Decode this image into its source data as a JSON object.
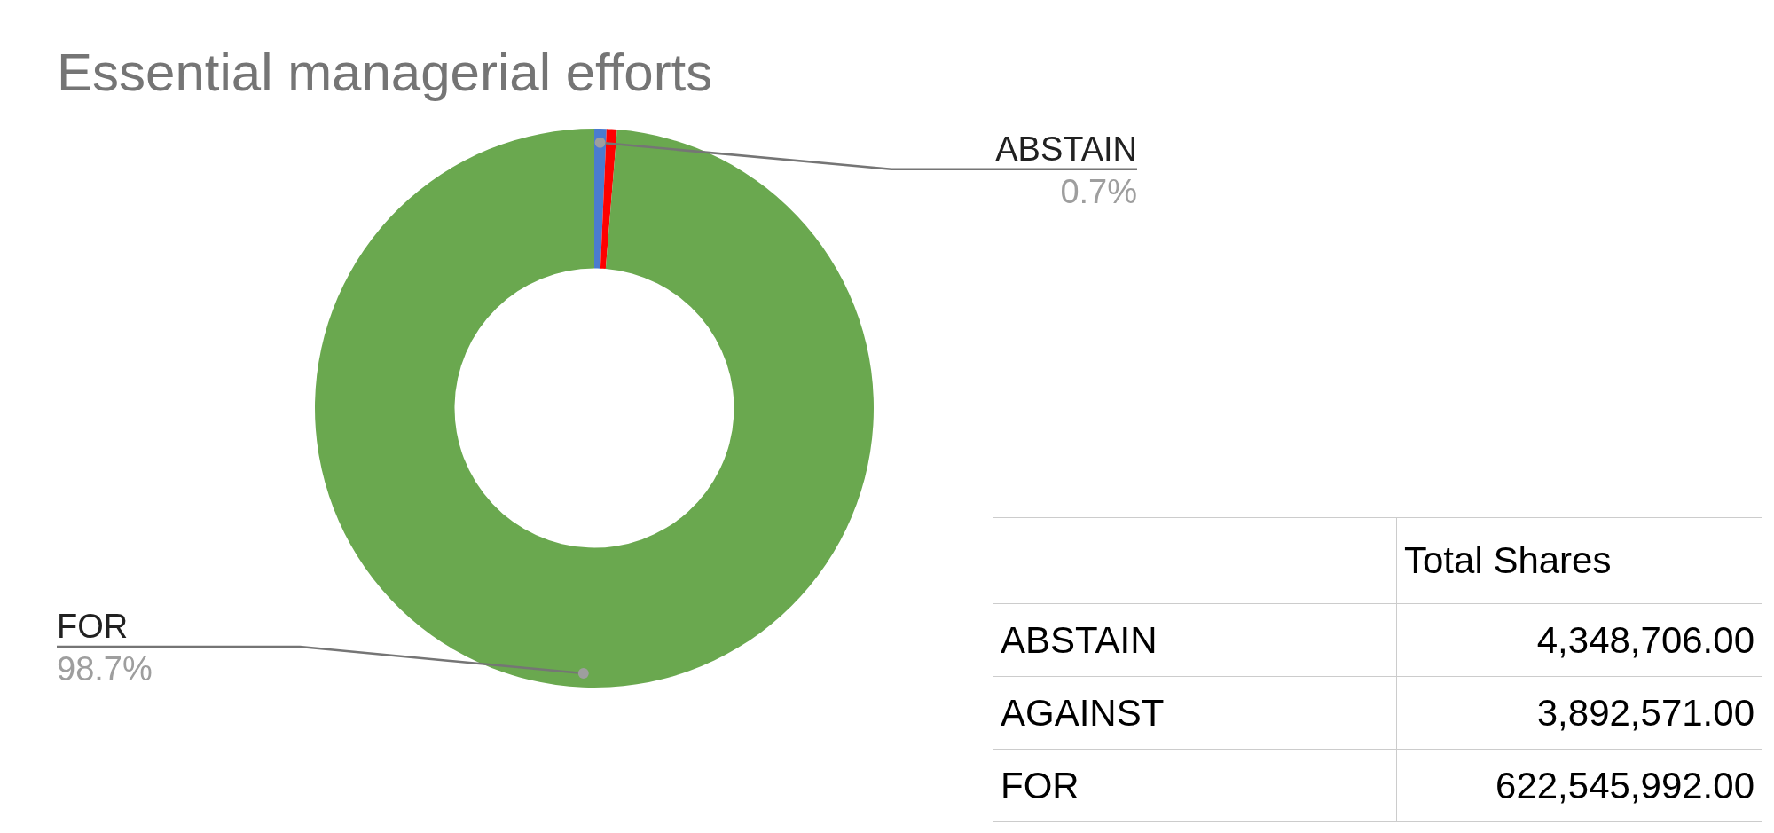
{
  "chart_data": [
    {
      "type": "donut",
      "title": "Essential managerial efforts",
      "categories": [
        "ABSTAIN",
        null,
        "FOR"
      ],
      "values": [
        0.7,
        0.6,
        98.7
      ],
      "colors": [
        "#4a7bd0",
        "#ff0000",
        "#6aa84f"
      ],
      "value_labels": [
        "0.7%",
        null,
        "98.7%"
      ]
    },
    {
      "type": "other",
      "annotations": [
        "Total Shares",
        "ABSTAIN",
        "4,348,706.00",
        "AGAINST",
        "3,892,571.00",
        "FOR",
        "622,545,992.00"
      ]
    }
  ]
}
